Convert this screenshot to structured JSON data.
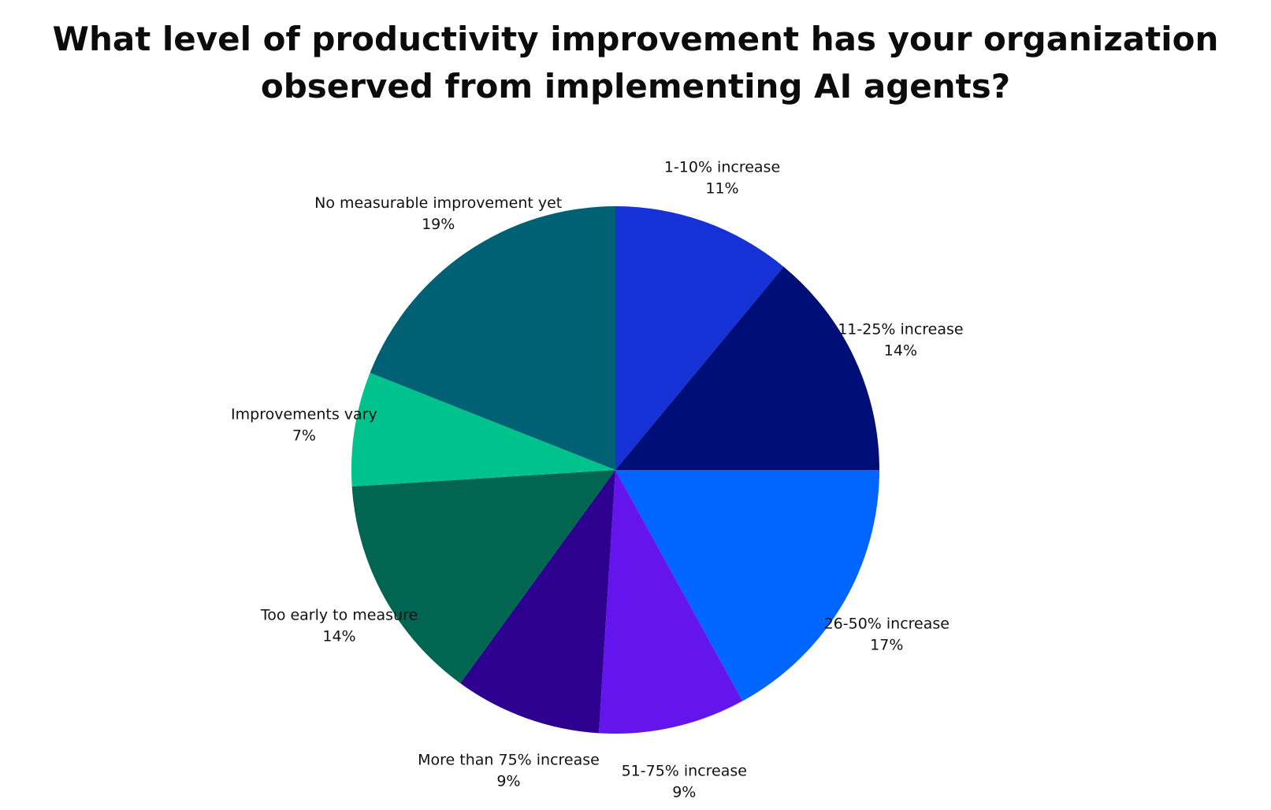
{
  "chart_data": {
    "type": "pie",
    "title_lines": [
      "What level of productivity improvement has your organization",
      "observed from implementing AI agents?"
    ],
    "slices": [
      {
        "label": "1-10% increase",
        "value": 11,
        "value_label": "11%",
        "color": "#1631d6"
      },
      {
        "label": "11-25% increase",
        "value": 14,
        "value_label": "14%",
        "color": "#000e78"
      },
      {
        "label": "26-50% increase",
        "value": 17,
        "value_label": "17%",
        "color": "#0066ff"
      },
      {
        "label": "51-75% increase",
        "value": 9,
        "value_label": "9%",
        "color": "#6415ee"
      },
      {
        "label": "More than 75% increase",
        "value": 9,
        "value_label": "9%",
        "color": "#2e0090"
      },
      {
        "label": "Too early to measure",
        "value": 14,
        "value_label": "14%",
        "color": "#006651"
      },
      {
        "label": "Improvements vary",
        "value": 7,
        "value_label": "7%",
        "color": "#00c28d"
      },
      {
        "label": "No measurable improvement yet",
        "value": 19,
        "value_label": "19%",
        "color": "#006175"
      }
    ],
    "start_angle_deg": 0,
    "direction": "clockwise"
  }
}
